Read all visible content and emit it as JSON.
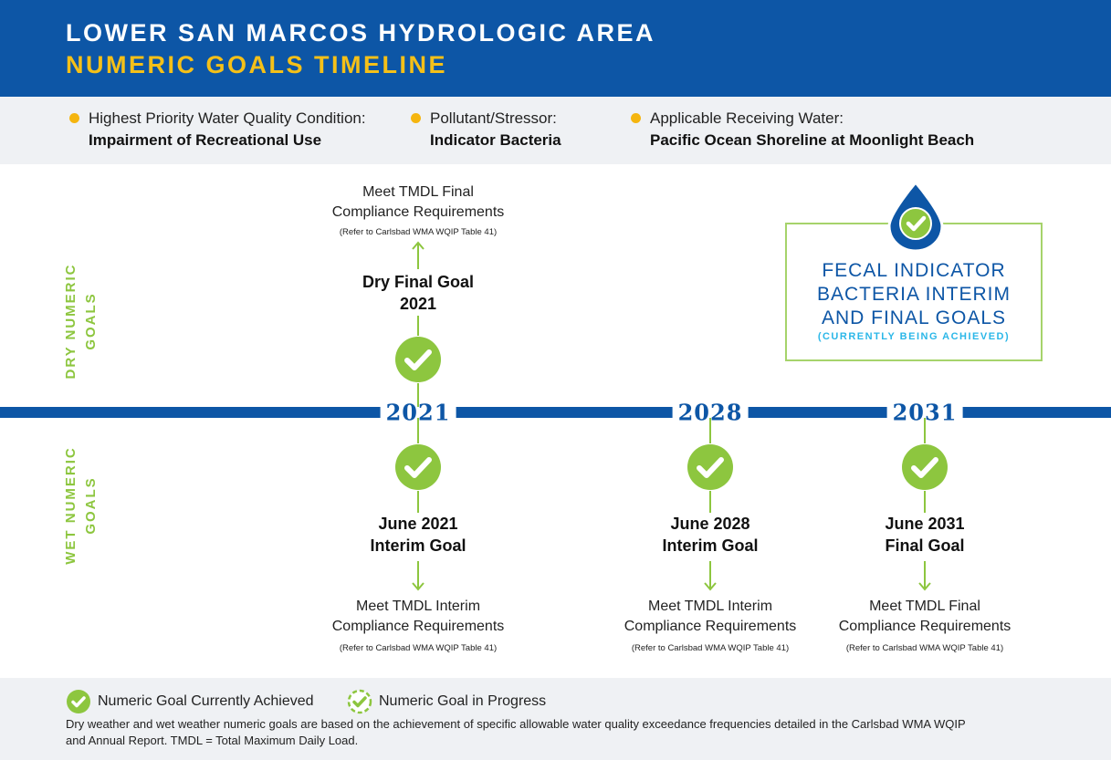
{
  "header": {
    "title": "LOWER SAN MARCOS HYDROLOGIC AREA",
    "subtitle": "NUMERIC GOALS TIMELINE"
  },
  "conditions": [
    {
      "label": "Highest Priority Water Quality Condition:",
      "value": "Impairment of Recreational Use"
    },
    {
      "label": "Pollutant/Stressor:",
      "value": "Indicator Bacteria"
    },
    {
      "label": "Applicable Receiving Water:",
      "value": "Pacific Ocean Shoreline at Moonlight Beach"
    }
  ],
  "side_labels": {
    "dry_line1": "DRY NUMERIC",
    "dry_line2": "GOALS",
    "wet_line1": "WET NUMERIC",
    "wet_line2": "GOALS"
  },
  "timeline": {
    "years": [
      "2021",
      "2028",
      "2031"
    ]
  },
  "dry_goal": {
    "req_line1": "Meet TMDL Final",
    "req_line2": "Compliance Requirements",
    "ref": "(Refer to Carlsbad WMA WQIP Table 41)",
    "goal_line1": "Dry Final Goal",
    "goal_line2": "2021",
    "status": "achieved"
  },
  "wet_goals": [
    {
      "goal_line1": "June 2021",
      "goal_line2": "Interim Goal",
      "req_line1": "Meet TMDL Interim",
      "req_line2": "Compliance Requirements",
      "ref": "(Refer to Carlsbad WMA WQIP Table 41)",
      "status": "achieved"
    },
    {
      "goal_line1": "June 2028",
      "goal_line2": "Interim Goal",
      "req_line1": "Meet TMDL Interim",
      "req_line2": "Compliance Requirements",
      "ref": "(Refer to Carlsbad WMA WQIP Table 41)",
      "status": "achieved"
    },
    {
      "goal_line1": "June 2031",
      "goal_line2": "Final Goal",
      "req_line1": "Meet TMDL Final",
      "req_line2": "Compliance Requirements",
      "ref": "(Refer to Carlsbad WMA WQIP Table 41)",
      "status": "achieved"
    }
  ],
  "callout": {
    "line1": "FECAL INDICATOR",
    "line2": "BACTERIA INTERIM",
    "line3": "AND FINAL GOALS",
    "status": "(CURRENTLY BEING ACHIEVED)",
    "icon": "water-drop-check-icon"
  },
  "legend": {
    "achieved": "Numeric Goal Currently Achieved",
    "in_progress": "Numeric Goal in Progress"
  },
  "footnote": "Dry weather and wet weather numeric goals are based on the achievement of specific allowable water quality exceedance frequencies detailed in the Carlsbad WMA WQIP and Annual Report. TMDL = Total Maximum Daily Load.",
  "colors": {
    "brand_blue": "#0d56a6",
    "title_yellow": "#f5c018",
    "goal_green": "#8dc63f",
    "status_cyan": "#2bb7e8",
    "bullet_orange": "#f5b50f"
  }
}
